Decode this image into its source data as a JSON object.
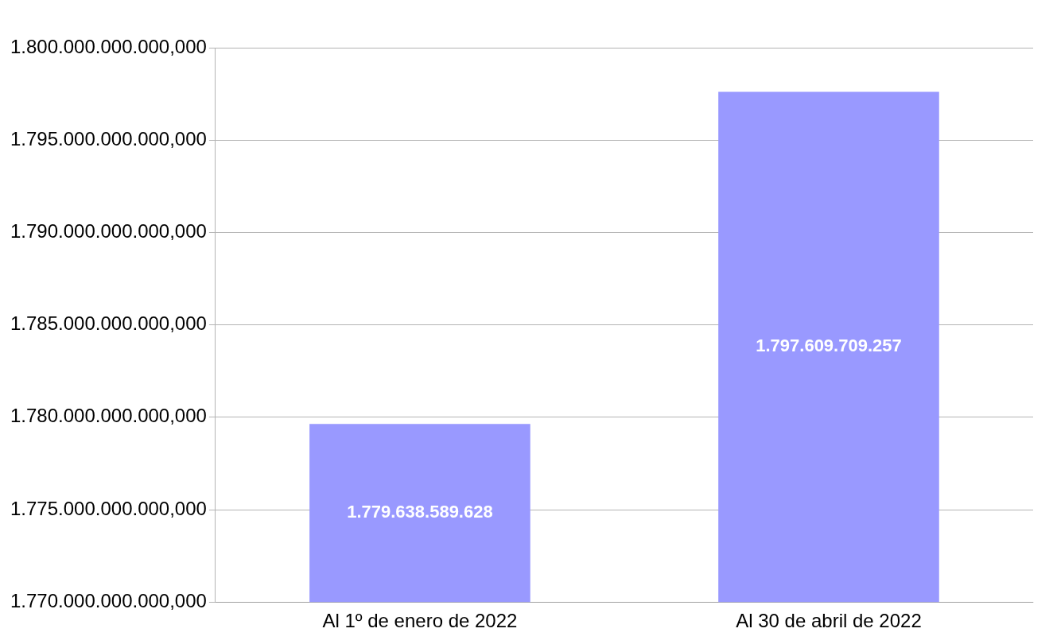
{
  "chart_data": {
    "type": "bar",
    "categories": [
      "Al 1º de enero de 2022",
      "Al 30 de abril de 2022"
    ],
    "series": [
      {
        "color": "#9999ff",
        "values": [
          1779638589628,
          1797609709257
        ],
        "value_labels": [
          "1.779.638.589.628",
          "1.797.609.709.257"
        ]
      }
    ],
    "ylim": [
      1770000000000,
      1800000000000
    ],
    "yticks": [
      {
        "value": 1770000000000,
        "label": "1.770.000.000.000,000"
      },
      {
        "value": 1775000000000,
        "label": "1.775.000.000.000,000"
      },
      {
        "value": 1780000000000,
        "label": "1.780.000.000.000,000"
      },
      {
        "value": 1785000000000,
        "label": "1.785.000.000.000,000"
      },
      {
        "value": 1790000000000,
        "label": "1.790.000.000.000,000"
      },
      {
        "value": 1795000000000,
        "label": "1.795.000.000.000,000"
      },
      {
        "value": 1800000000000,
        "label": "1.800.000.000.000,000"
      }
    ],
    "grid": "y"
  }
}
